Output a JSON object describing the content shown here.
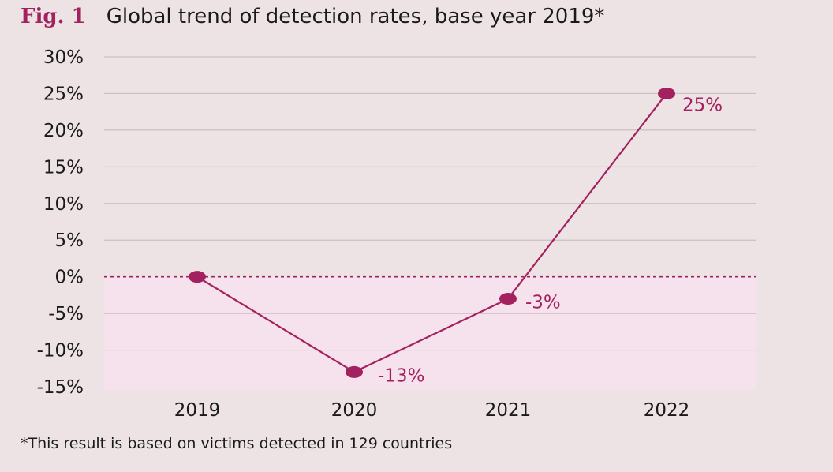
{
  "figure": {
    "label": "Fig. 1",
    "title": "Global trend of detection rates, base year 2019*",
    "footnote": "*This result is based on victims detected in 129 countries"
  },
  "colors": {
    "background": "#ede3e5",
    "accent": "#a3215e",
    "negative_band": "#f6e2ec",
    "grid": "#c9c0c3"
  },
  "chart_data": {
    "type": "line",
    "title": "Global trend of detection rates, base year 2019*",
    "xlabel": "",
    "ylabel": "",
    "categories": [
      "2019",
      "2020",
      "2021",
      "2022"
    ],
    "series": [
      {
        "values": [
          0,
          -13,
          -3,
          25
        ]
      }
    ],
    "data_labels": [
      "",
      "-13%",
      "-3%",
      "25%"
    ],
    "ylim": [
      -15,
      30
    ],
    "yticks": [
      30,
      25,
      20,
      15,
      10,
      5,
      0,
      -5,
      -10,
      -15
    ],
    "ytick_labels": [
      "30%",
      "25%",
      "20%",
      "15%",
      "10%",
      "5%",
      "0%",
      "-5%",
      "-10%",
      "-15%"
    ],
    "grid": true,
    "baseline_style": "dashed",
    "negative_region_shaded": true
  }
}
